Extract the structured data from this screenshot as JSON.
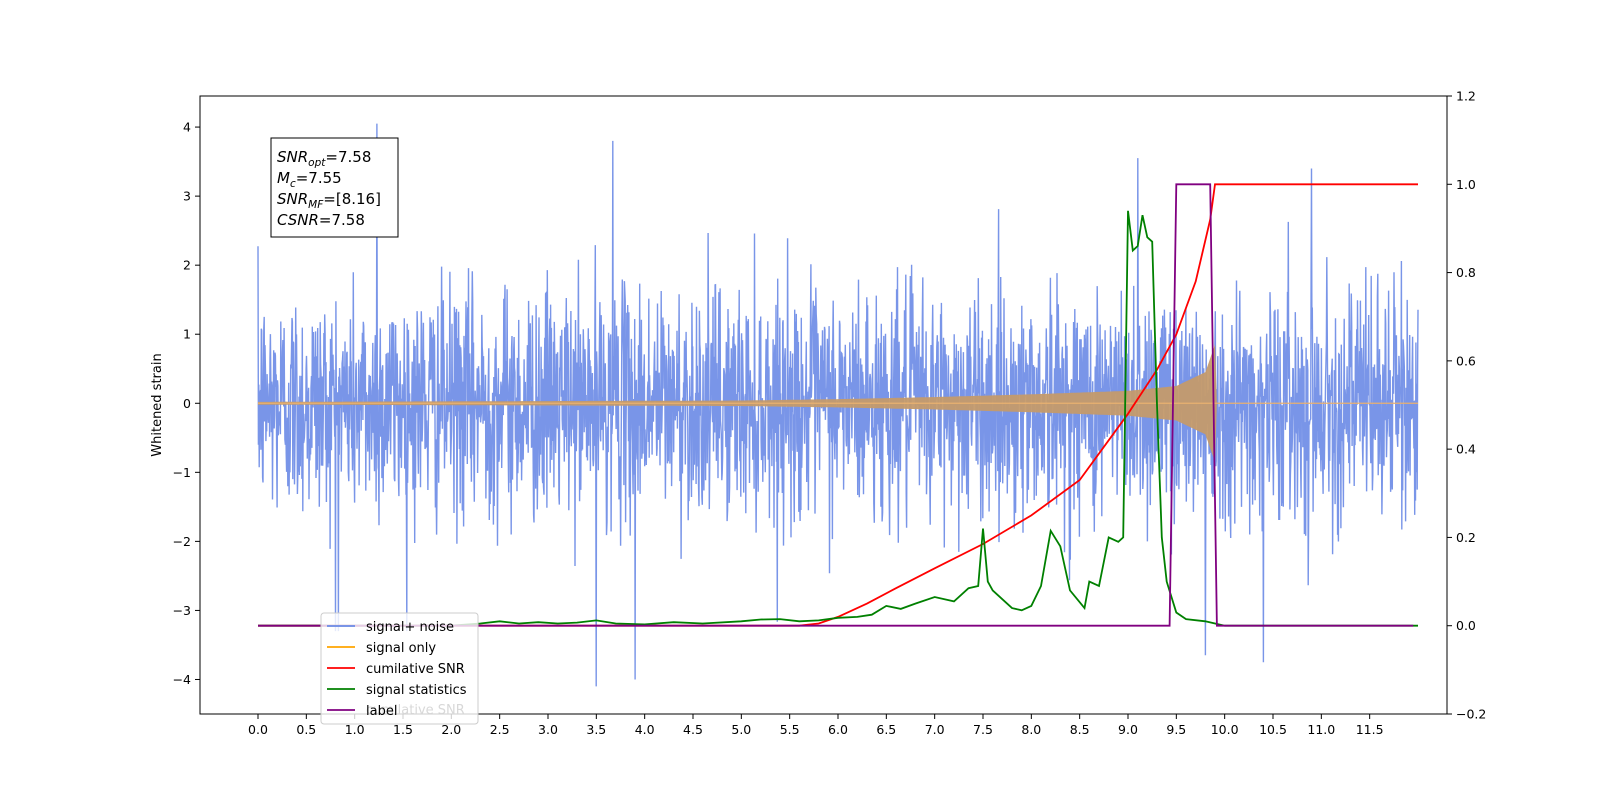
{
  "chart_data": {
    "type": "line",
    "xlabel": "",
    "ylabel": "Whitened strain",
    "xlim": [
      -0.6,
      12.3
    ],
    "ylim": [
      -4.5,
      4.45
    ],
    "y2lim": [
      -0.2,
      1.2
    ],
    "x_ticks": [
      "0.0",
      "0.5",
      "1.0",
      "1.5",
      "2.0",
      "2.5",
      "3.0",
      "3.5",
      "4.0",
      "4.5",
      "5.0",
      "5.5",
      "6.0",
      "6.5",
      "7.0",
      "7.5",
      "8.0",
      "8.5",
      "9.0",
      "9.5",
      "10.0",
      "10.5",
      "11.0",
      "11.5"
    ],
    "y_ticks": [
      "4",
      "3",
      "2",
      "1",
      "0",
      "−1",
      "−2",
      "−3",
      "−4"
    ],
    "y2_ticks": [
      "1.2",
      "1.0",
      "0.8",
      "0.6",
      "0.4",
      "0.2",
      "0.0",
      "−0.2"
    ],
    "annotation": {
      "lines": [
        {
          "var": "SNR",
          "sub": "opt",
          "rest": "=7.58"
        },
        {
          "var": "M",
          "sub": "c",
          "rest": "=7.55"
        },
        {
          "var": "SNR",
          "sub": "MF",
          "rest": "=[8.16]"
        },
        {
          "var": "CSNR",
          "sub": "",
          "rest": "=7.58"
        }
      ]
    },
    "legend": {
      "placement": "lower-left",
      "entries": [
        "signal+ noise",
        "signal only",
        "cumilative SNR",
        "signal statistics",
        "label"
      ],
      "ghost_text": "cumilative SNR"
    },
    "colors": {
      "signal_noise": "#6a8ae6",
      "signal_only": "#ffa500",
      "cumulative_snr": "#ff0000",
      "signal_statistics": "#008000",
      "label": "#800080"
    },
    "series": [
      {
        "name": "signal+ noise",
        "axis": "left",
        "x_range": [
          0.0,
          12.0
        ],
        "noise_sigma": 1.0,
        "typical_extent": [
          -2.3,
          2.3
        ],
        "peak_values": [
          {
            "x": 1.23,
            "y": 4.05
          },
          {
            "x": 3.5,
            "y": -4.1
          },
          {
            "x": 3.9,
            "y": -4.0
          },
          {
            "x": 10.4,
            "y": -3.75
          },
          {
            "x": 9.8,
            "y": -3.65
          },
          {
            "x": 0.8,
            "y": -3.3
          },
          {
            "x": 3.67,
            "y": 3.8
          },
          {
            "x": 9.1,
            "y": 3.55
          },
          {
            "x": 10.9,
            "y": 3.4
          }
        ]
      },
      {
        "name": "signal only",
        "axis": "left",
        "type": "chirp",
        "x_range": [
          0.0,
          12.0
        ],
        "merger_x": 9.9,
        "envelope": [
          {
            "x": 0.0,
            "y": 0.02
          },
          {
            "x": 5.0,
            "y": 0.04
          },
          {
            "x": 6.0,
            "y": 0.06
          },
          {
            "x": 7.0,
            "y": 0.09
          },
          {
            "x": 8.0,
            "y": 0.13
          },
          {
            "x": 9.0,
            "y": 0.18
          },
          {
            "x": 9.5,
            "y": 0.25
          },
          {
            "x": 9.8,
            "y": 0.45
          },
          {
            "x": 9.9,
            "y": 0.85
          },
          {
            "x": 9.92,
            "y": 0.0
          },
          {
            "x": 12.0,
            "y": 0.0
          }
        ]
      },
      {
        "name": "cumilative SNR",
        "axis": "right",
        "x": [
          0.0,
          5.0,
          5.6,
          5.8,
          6.0,
          6.3,
          6.6,
          7.0,
          7.5,
          8.0,
          8.5,
          9.0,
          9.3,
          9.5,
          9.7,
          9.85,
          9.9,
          12.0
        ],
        "y": [
          0.0,
          0.0,
          0.0,
          0.005,
          0.02,
          0.05,
          0.085,
          0.13,
          0.185,
          0.25,
          0.33,
          0.48,
          0.58,
          0.66,
          0.78,
          0.92,
          1.0,
          1.0
        ]
      },
      {
        "name": "signal statistics",
        "axis": "right",
        "x": [
          0.0,
          1.0,
          2.0,
          2.3,
          2.5,
          2.7,
          2.9,
          3.1,
          3.3,
          3.5,
          3.7,
          4.0,
          4.3,
          4.6,
          5.0,
          5.2,
          5.4,
          5.6,
          5.8,
          6.0,
          6.2,
          6.35,
          6.5,
          6.65,
          6.8,
          7.0,
          7.2,
          7.35,
          7.45,
          7.5,
          7.55,
          7.6,
          7.7,
          7.8,
          7.9,
          8.0,
          8.1,
          8.2,
          8.3,
          8.4,
          8.55,
          8.6,
          8.7,
          8.8,
          8.9,
          8.95,
          9.0,
          9.05,
          9.1,
          9.15,
          9.2,
          9.25,
          9.3,
          9.35,
          9.4,
          9.5,
          9.6,
          9.8,
          9.9,
          10.0,
          12.0
        ],
        "y": [
          0.0,
          0.0,
          0.0,
          0.005,
          0.01,
          0.005,
          0.008,
          0.005,
          0.007,
          0.012,
          0.005,
          0.003,
          0.008,
          0.005,
          0.01,
          0.014,
          0.015,
          0.01,
          0.012,
          0.018,
          0.02,
          0.025,
          0.045,
          0.038,
          0.05,
          0.065,
          0.055,
          0.085,
          0.09,
          0.22,
          0.1,
          0.08,
          0.06,
          0.04,
          0.035,
          0.045,
          0.09,
          0.215,
          0.18,
          0.08,
          0.04,
          0.1,
          0.09,
          0.2,
          0.19,
          0.2,
          0.94,
          0.85,
          0.86,
          0.93,
          0.88,
          0.87,
          0.5,
          0.2,
          0.1,
          0.03,
          0.015,
          0.01,
          0.005,
          0.0,
          0.0
        ]
      },
      {
        "name": "label",
        "axis": "right",
        "x": [
          0.0,
          9.43,
          9.5,
          9.85,
          9.92,
          11.95
        ],
        "y": [
          0.0,
          0.0,
          1.0,
          1.0,
          0.0,
          0.0
        ]
      }
    ]
  }
}
